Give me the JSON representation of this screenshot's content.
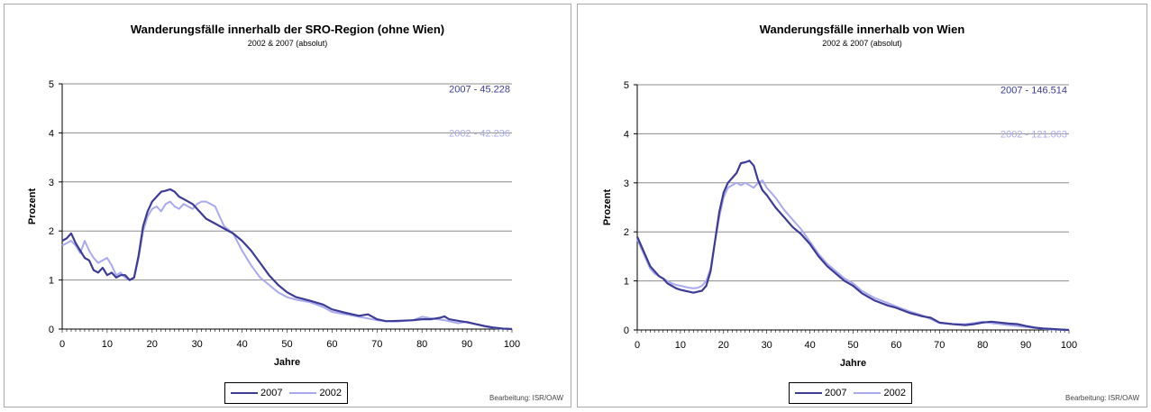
{
  "colors": {
    "series_2007": "#3c3c96",
    "series_2002": "#a9a9ee",
    "grid": "#8c8c8c"
  },
  "credit": "Bearbeitung: ISR/OAW",
  "chart_data": [
    {
      "type": "line",
      "title": "Wanderungsfälle innerhalb der SRO-Region (ohne Wien)",
      "subtitle": "2002 & 2007 (absolut)",
      "xlabel": "Jahre",
      "ylabel": "Prozent",
      "xlim": [
        0,
        100
      ],
      "ylim": [
        0,
        5
      ],
      "x_ticks": [
        0,
        10,
        20,
        30,
        40,
        50,
        60,
        70,
        80,
        90,
        100
      ],
      "y_ticks": [
        0,
        1,
        2,
        3,
        4,
        5
      ],
      "grid": "horizontal",
      "legend": "bottom",
      "annotations": [
        {
          "text": "2007 - 45.228",
          "series": "2007",
          "y": 4.9
        },
        {
          "text": "2002 - 42.236",
          "series": "2002",
          "y": 4.0
        }
      ],
      "series": [
        {
          "name": "2007",
          "x": [
            0,
            1,
            2,
            3,
            4,
            5,
            6,
            7,
            8,
            9,
            10,
            11,
            12,
            13,
            14,
            15,
            16,
            17,
            18,
            19,
            20,
            21,
            22,
            23,
            24,
            25,
            26,
            27,
            28,
            29,
            30,
            32,
            34,
            36,
            38,
            40,
            42,
            44,
            46,
            48,
            50,
            52,
            55,
            58,
            60,
            63,
            66,
            68,
            70,
            72,
            75,
            78,
            80,
            82,
            84,
            85,
            86,
            88,
            90,
            92,
            94,
            96,
            98,
            100
          ],
          "y": [
            1.8,
            1.85,
            1.95,
            1.75,
            1.6,
            1.45,
            1.4,
            1.2,
            1.15,
            1.25,
            1.1,
            1.15,
            1.05,
            1.1,
            1.1,
            1.0,
            1.05,
            1.5,
            2.1,
            2.4,
            2.6,
            2.7,
            2.8,
            2.82,
            2.85,
            2.8,
            2.7,
            2.65,
            2.6,
            2.55,
            2.45,
            2.25,
            2.15,
            2.05,
            1.95,
            1.8,
            1.6,
            1.35,
            1.1,
            0.9,
            0.75,
            0.65,
            0.58,
            0.5,
            0.4,
            0.33,
            0.27,
            0.3,
            0.2,
            0.16,
            0.17,
            0.18,
            0.2,
            0.2,
            0.23,
            0.26,
            0.2,
            0.17,
            0.14,
            0.1,
            0.06,
            0.03,
            0.01,
            0.0
          ]
        },
        {
          "name": "2002",
          "x": [
            0,
            1,
            2,
            3,
            4,
            5,
            6,
            7,
            8,
            9,
            10,
            11,
            12,
            13,
            14,
            15,
            16,
            17,
            18,
            19,
            20,
            21,
            22,
            23,
            24,
            25,
            26,
            27,
            28,
            29,
            30,
            31,
            32,
            33,
            34,
            35,
            36,
            38,
            40,
            42,
            44,
            46,
            48,
            50,
            52,
            55,
            58,
            60,
            63,
            66,
            70,
            74,
            78,
            80,
            82,
            85,
            88,
            90,
            92,
            94,
            96,
            98,
            100
          ],
          "y": [
            1.7,
            1.75,
            1.8,
            1.7,
            1.55,
            1.8,
            1.6,
            1.45,
            1.35,
            1.4,
            1.45,
            1.3,
            1.1,
            1.15,
            1.05,
            1.0,
            1.05,
            1.45,
            2.0,
            2.3,
            2.45,
            2.5,
            2.4,
            2.55,
            2.6,
            2.5,
            2.45,
            2.55,
            2.5,
            2.45,
            2.55,
            2.6,
            2.6,
            2.55,
            2.5,
            2.3,
            2.1,
            1.95,
            1.6,
            1.3,
            1.05,
            0.9,
            0.75,
            0.65,
            0.6,
            0.55,
            0.45,
            0.35,
            0.3,
            0.25,
            0.18,
            0.15,
            0.18,
            0.25,
            0.22,
            0.18,
            0.12,
            0.15,
            0.1,
            0.05,
            0.02,
            0.01,
            0.0
          ]
        }
      ]
    },
    {
      "type": "line",
      "title": "Wanderungsfälle innerhalb von Wien",
      "subtitle": "2002 & 2007 (absolut)",
      "xlabel": "Jahre",
      "ylabel": "Prozent",
      "xlim": [
        0,
        100
      ],
      "ylim": [
        0,
        5
      ],
      "x_ticks": [
        0,
        10,
        20,
        30,
        40,
        50,
        60,
        70,
        80,
        90,
        100
      ],
      "y_ticks": [
        0,
        1,
        2,
        3,
        4,
        5
      ],
      "grid": "horizontal",
      "legend": "bottom",
      "annotations": [
        {
          "text": "2007 - 146.514",
          "series": "2007",
          "y": 4.9
        },
        {
          "text": "2002 - 121.063",
          "series": "2002",
          "y": 4.0
        }
      ],
      "series": [
        {
          "name": "2007",
          "x": [
            0,
            1,
            2,
            3,
            4,
            5,
            6,
            7,
            8,
            9,
            10,
            11,
            12,
            13,
            14,
            15,
            16,
            17,
            18,
            19,
            20,
            21,
            22,
            23,
            24,
            25,
            26,
            27,
            28,
            29,
            30,
            32,
            34,
            36,
            38,
            40,
            42,
            44,
            46,
            48,
            50,
            52,
            55,
            58,
            60,
            63,
            66,
            68,
            70,
            73,
            76,
            78,
            80,
            82,
            84,
            86,
            88,
            90,
            92,
            94,
            96,
            98,
            100
          ],
          "y": [
            1.9,
            1.7,
            1.5,
            1.3,
            1.2,
            1.1,
            1.05,
            0.95,
            0.9,
            0.85,
            0.82,
            0.8,
            0.78,
            0.76,
            0.78,
            0.8,
            0.9,
            1.2,
            1.8,
            2.4,
            2.8,
            3.0,
            3.1,
            3.2,
            3.4,
            3.42,
            3.45,
            3.35,
            3.05,
            2.85,
            2.75,
            2.5,
            2.3,
            2.1,
            1.95,
            1.75,
            1.5,
            1.3,
            1.15,
            1.0,
            0.9,
            0.75,
            0.6,
            0.5,
            0.45,
            0.35,
            0.28,
            0.25,
            0.15,
            0.12,
            0.1,
            0.12,
            0.15,
            0.17,
            0.15,
            0.13,
            0.12,
            0.08,
            0.05,
            0.03,
            0.02,
            0.01,
            0.0
          ]
        },
        {
          "name": "2002",
          "x": [
            0,
            1,
            2,
            3,
            4,
            5,
            6,
            7,
            8,
            9,
            10,
            11,
            12,
            13,
            14,
            15,
            16,
            17,
            18,
            19,
            20,
            21,
            22,
            23,
            24,
            25,
            26,
            27,
            28,
            29,
            30,
            32,
            34,
            36,
            38,
            40,
            42,
            44,
            46,
            48,
            50,
            52,
            55,
            58,
            60,
            63,
            66,
            68,
            70,
            73,
            76,
            78,
            80,
            82,
            84,
            86,
            88,
            90,
            92,
            94,
            96,
            98,
            100
          ],
          "y": [
            1.85,
            1.65,
            1.45,
            1.25,
            1.15,
            1.1,
            1.05,
            1.0,
            0.95,
            0.92,
            0.9,
            0.88,
            0.86,
            0.85,
            0.86,
            0.9,
            1.0,
            1.25,
            1.8,
            2.3,
            2.7,
            2.9,
            2.95,
            3.0,
            2.95,
            3.0,
            2.95,
            2.9,
            3.0,
            3.05,
            2.9,
            2.7,
            2.45,
            2.25,
            2.05,
            1.8,
            1.55,
            1.35,
            1.2,
            1.05,
            0.95,
            0.8,
            0.65,
            0.55,
            0.48,
            0.38,
            0.3,
            0.22,
            0.14,
            0.12,
            0.12,
            0.14,
            0.17,
            0.14,
            0.12,
            0.1,
            0.08,
            0.06,
            0.04,
            0.02,
            0.01,
            0.0,
            0.0
          ]
        }
      ]
    }
  ]
}
